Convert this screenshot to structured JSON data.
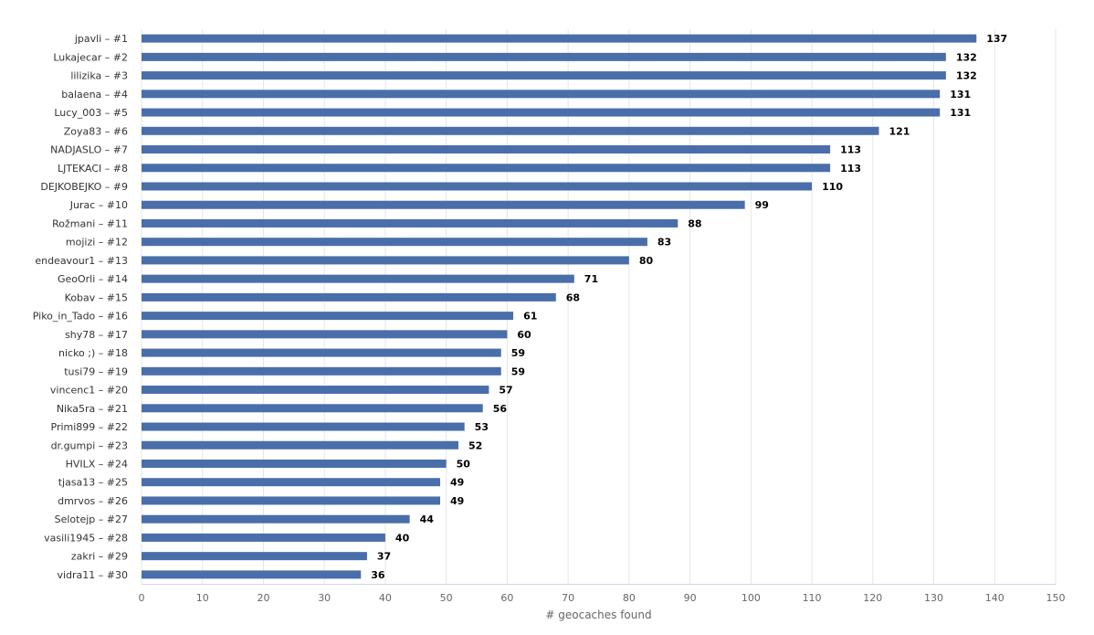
{
  "chart_data": {
    "type": "bar",
    "orientation": "horizontal",
    "categories": [
      "jpavli – #1",
      "Lukajecar – #2",
      "lilizika – #3",
      "balaena – #4",
      "Lucy_003 – #5",
      "Zoya83 – #6",
      "NADJASLO – #7",
      "LJTEKACI – #8",
      "DEJKOBEJKO – #9",
      "Jurac – #10",
      "Rožmani – #11",
      "mojizi – #12",
      "endeavour1 – #13",
      "GeoOrli – #14",
      "Kobav – #15",
      "Piko_in_Tado – #16",
      "shy78 – #17",
      "nicko ;) – #18",
      "tusi79 – #19",
      "vincenc1 – #20",
      "Nika5ra – #21",
      "Primi899 – #22",
      "dr.gumpi – #23",
      "HVILX – #24",
      "tjasa13 – #25",
      "dmrvos – #26",
      "Selotejp – #27",
      "vasili1945 – #28",
      "zakri – #29",
      "vidra11 – #30"
    ],
    "values": [
      137,
      132,
      132,
      131,
      131,
      121,
      113,
      113,
      110,
      99,
      88,
      83,
      80,
      71,
      68,
      61,
      60,
      59,
      59,
      57,
      56,
      53,
      52,
      50,
      49,
      49,
      44,
      40,
      37,
      36
    ],
    "xlabel": "# geocaches found",
    "ylabel": "",
    "xlim": [
      0,
      150
    ],
    "xticks": [
      0,
      10,
      20,
      30,
      40,
      50,
      60,
      70,
      80,
      90,
      100,
      110,
      120,
      130,
      140,
      150
    ],
    "grid": true,
    "data_labels": true,
    "bar_color": "#4a6ea9",
    "grid_color": "#e6e6e6",
    "axis_color": "#ccd6eb"
  }
}
